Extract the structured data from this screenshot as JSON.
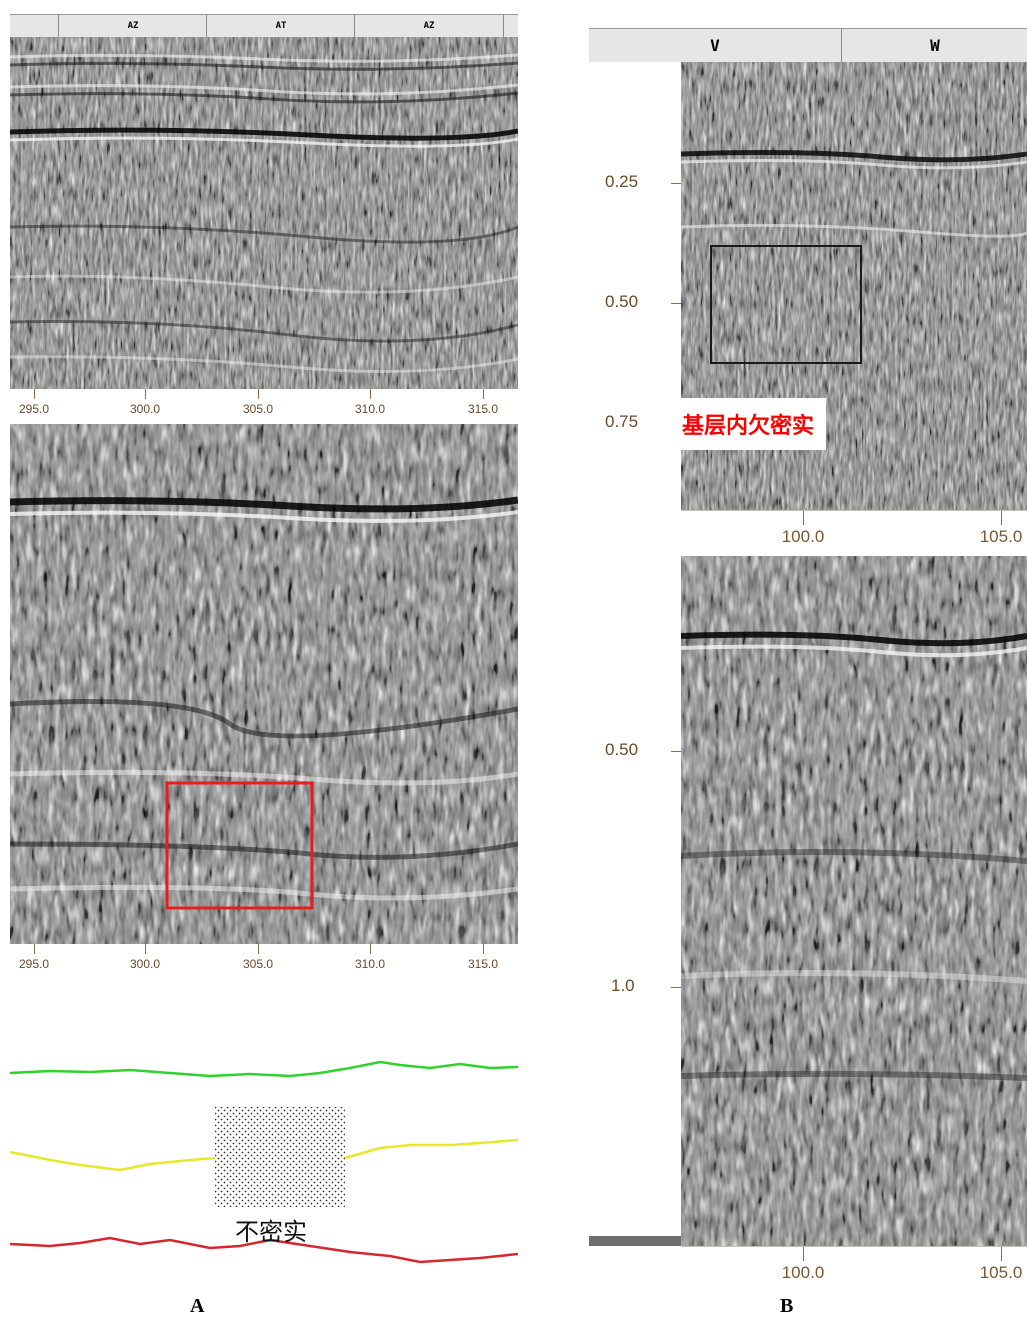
{
  "panel_a": {
    "label": "A",
    "marker_labels": [
      "AZ",
      "AT",
      "AZ"
    ],
    "x_ticks": [
      "295.0",
      "300.0",
      "305.0",
      "310.0",
      "315.0"
    ],
    "annotation": "不密实",
    "colors": {
      "highlight_box": "#e61e1e",
      "line_green": "#2fd22f",
      "line_yellow": "#e8e82a",
      "line_red": "#d8262e"
    }
  },
  "panel_b": {
    "label": "B",
    "marker_labels": [
      "V",
      "W"
    ],
    "x_ticks": [
      "100.0",
      "105.0"
    ],
    "time_ticks_top": [
      "0.25",
      "0.50",
      "0.75"
    ],
    "time_ticks_bottom": [
      "0.50",
      "1.0"
    ],
    "annotation": "基层内欠密实",
    "colors": {
      "annotation_text": "#ff0000",
      "highlight_box": "#1a1a1a"
    }
  }
}
